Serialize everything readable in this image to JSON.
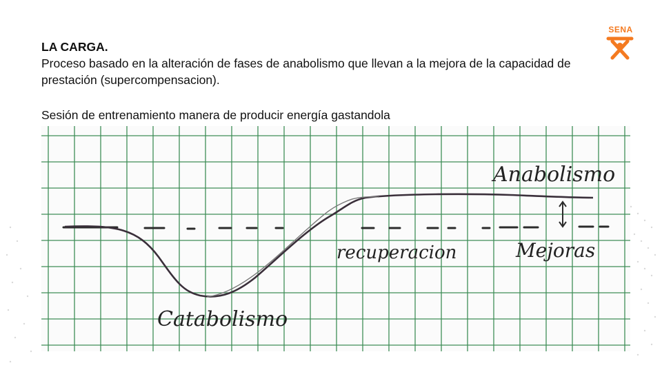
{
  "slide": {
    "title": "LA CARGA.",
    "paragraph": "Proceso basado en la alteración  de fases de anabolismo que llevan  a la mejora de la capacidad de prestación (supercompensacion).",
    "subtitle": "Sesión de entrenamiento manera de producir energía gastandola"
  },
  "logo": {
    "text": "SENA",
    "color": "#f47a20"
  },
  "sketch": {
    "labels": {
      "anabolismo": "Anabolismo",
      "recuperacion": "recuperacion",
      "mejoras": "Mejoras",
      "catabolismo": "Catabolismo"
    },
    "ink_color": "#3a2f3a",
    "grid_color": "#1e7a3b"
  }
}
